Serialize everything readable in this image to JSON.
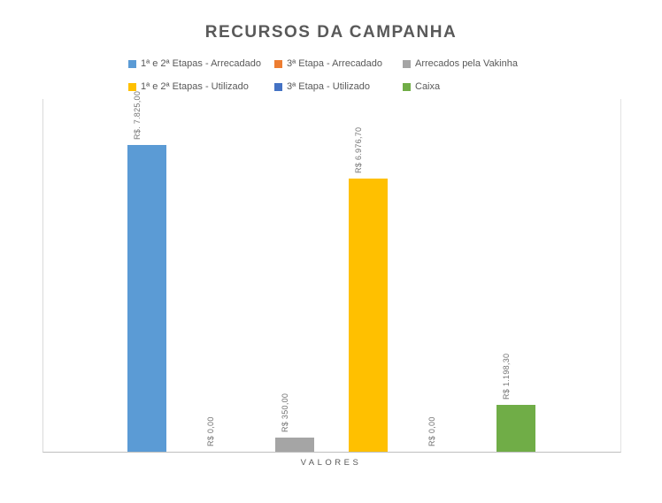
{
  "title": "RECURSOS DA CAMPANHA",
  "chart_data": {
    "type": "bar",
    "title": "RECURSOS DA CAMPANHA",
    "categories": [
      "VALORES"
    ],
    "xlabel": "VALORES",
    "ylabel": "",
    "ylim": [
      0,
      9000
    ],
    "grid": false,
    "legend_position": "top",
    "series": [
      {
        "name": "1ª e 2ª Etapas - Arrecadado",
        "color": "#5b9bd5",
        "values": [
          7825.0
        ],
        "data_label": "R$. 7.825,00"
      },
      {
        "name": "3ª Etapa - Arrecadado",
        "color": "#ed7d31",
        "values": [
          0
        ],
        "data_label": "R$ 0,00"
      },
      {
        "name": "Arrecados pela Vakinha",
        "color": "#a5a5a5",
        "values": [
          350.0
        ],
        "data_label": "R$ 350,00"
      },
      {
        "name": "1ª e 2ª Etapas - Utilizado",
        "color": "#ffc000",
        "values": [
          6976.7
        ],
        "data_label": "R$ 6.976,70"
      },
      {
        "name": "3ª Etapa - Utilizado",
        "color": "#4472c4",
        "values": [
          0
        ],
        "data_label": "R$ 0,00"
      },
      {
        "name": "Caixa",
        "color": "#70ad47",
        "values": [
          1198.3
        ],
        "data_label": "R$ 1.198,30"
      }
    ],
    "legend_rows": [
      [
        0,
        1,
        2
      ],
      [
        3,
        4,
        5
      ]
    ]
  }
}
